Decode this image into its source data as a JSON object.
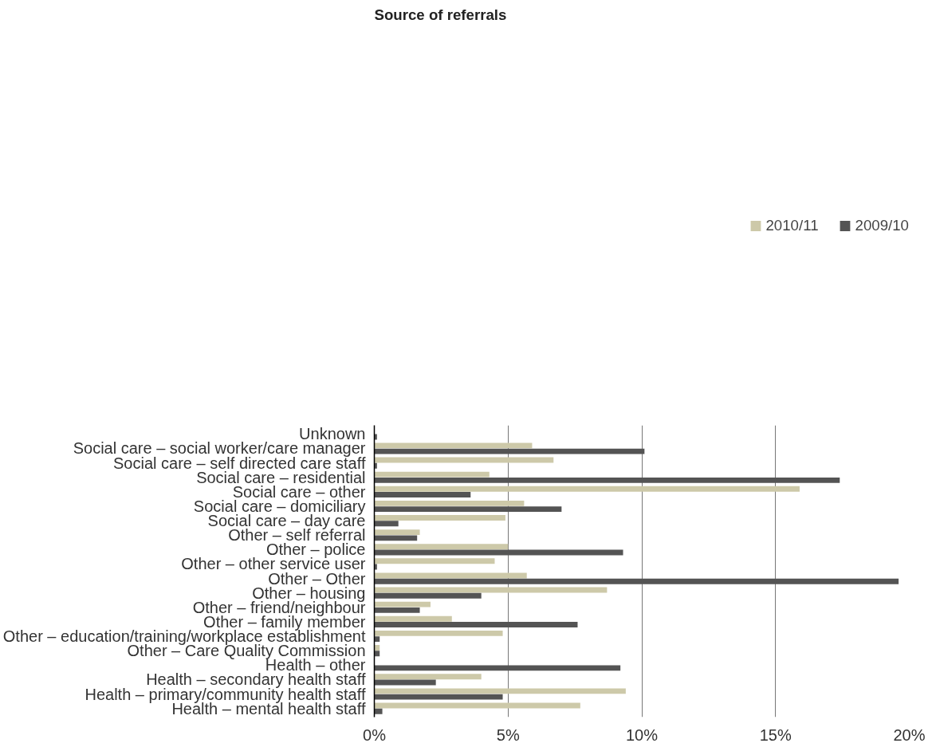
{
  "chart_data": {
    "type": "bar",
    "orientation": "horizontal",
    "title": "Source of referrals",
    "categories": [
      "Unknown",
      "Social care – social worker/care manager",
      "Social care – self directed care staff",
      "Social care – residential",
      "Social care – other",
      "Social care – domiciliary",
      "Social care – day care",
      "Other – self referral",
      "Other – police",
      "Other – other service user",
      "Other – Other",
      "Other – housing",
      "Other – friend/neighbour",
      "Other – family member",
      "Other – education/training/workplace establishment",
      "Other – Care Quality Commission",
      "Health – other",
      "Health – secondary health staff",
      "Health – primary/community health staff",
      "Health – mental health staff"
    ],
    "series": [
      {
        "name": "2010/11",
        "color": "#cdc9a9",
        "values": [
          null,
          5.9,
          6.7,
          4.3,
          15.9,
          5.6,
          4.9,
          1.7,
          5.0,
          4.5,
          5.7,
          8.7,
          2.1,
          2.9,
          4.8,
          0.2,
          null,
          4.0,
          9.4,
          7.7
        ]
      },
      {
        "name": "2009/10",
        "color": "#545454",
        "values": [
          0.1,
          10.1,
          0.1,
          17.4,
          3.6,
          7.0,
          0.9,
          1.6,
          9.3,
          0.1,
          19.6,
          4.0,
          1.7,
          7.6,
          0.2,
          0.2,
          9.2,
          2.3,
          4.8,
          0.3
        ]
      }
    ],
    "xlim": [
      0,
      20
    ],
    "xticks": [
      {
        "value": 0,
        "label": "0%"
      },
      {
        "value": 5,
        "label": "5%"
      },
      {
        "value": 10,
        "label": "10%"
      },
      {
        "value": 15,
        "label": "15%"
      },
      {
        "value": 20,
        "label": "20%"
      }
    ],
    "grid": "x",
    "legend": "top right"
  }
}
